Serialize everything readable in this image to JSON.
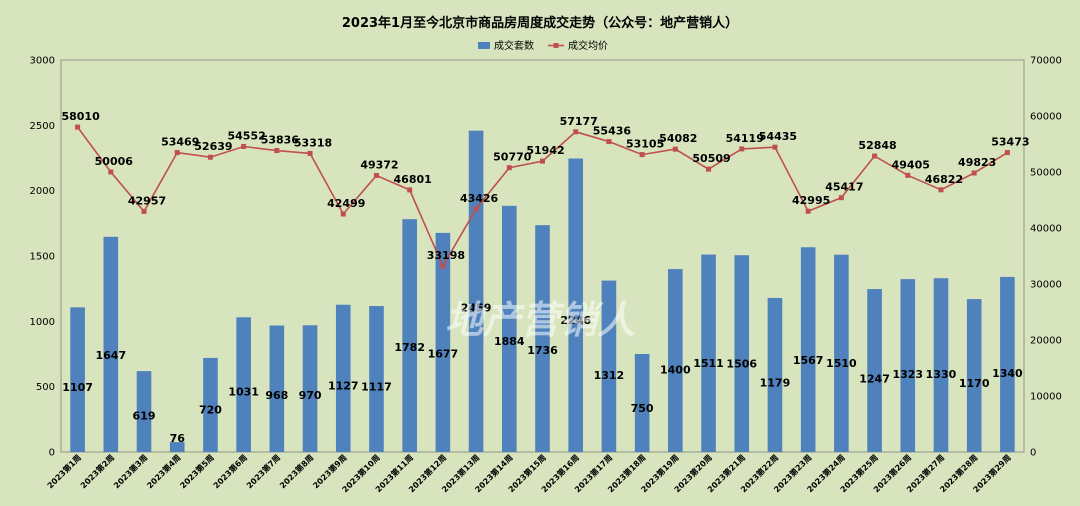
{
  "chart_data": {
    "type": "bar",
    "title": "2023年1月至今北京市商品房周度成交走势（公众号：地产营销人）",
    "watermark": "地产营销人",
    "categories": [
      "2023第1周",
      "2023第2周",
      "2023第3周",
      "2023第4周",
      "2023第5周",
      "2023第6周",
      "2023第7周",
      "2023第8周",
      "2023第9周",
      "2023第10周",
      "2023第11周",
      "2023第12周",
      "2023第13周",
      "2023第14周",
      "2023第15周",
      "2023第16周",
      "2023第17周",
      "2023第18周",
      "2023第19周",
      "2023第20周",
      "2023第21周",
      "2023第22周",
      "2023第23周",
      "2023第24周",
      "2023第25周",
      "2023第26周",
      "2023第27周",
      "2023第28周",
      "2023第29周"
    ],
    "series": [
      {
        "name": "成交套数",
        "type": "bar",
        "axis": "left",
        "color": "#4f81bd",
        "values": [
          1107,
          1647,
          619,
          76,
          720,
          1031,
          968,
          970,
          1127,
          1117,
          1782,
          1677,
          2459,
          1884,
          1736,
          2246,
          1312,
          750,
          1400,
          1511,
          1506,
          1179,
          1567,
          1510,
          1247,
          1323,
          1330,
          1170,
          1340
        ]
      },
      {
        "name": "成交均价",
        "type": "line",
        "axis": "right",
        "color": "#c0504d",
        "values": [
          58010,
          50006,
          42957,
          53469,
          52639,
          54552,
          53836,
          53318,
          42499,
          49372,
          46801,
          33198,
          43426,
          50770,
          51942,
          57177,
          55436,
          53105,
          54082,
          50509,
          54119,
          54435,
          42995,
          45417,
          52848,
          49405,
          46822,
          49823,
          53473
        ]
      }
    ],
    "left_axis": {
      "ylim": [
        0,
        3000
      ],
      "ticks": [
        "0",
        "500",
        "1000",
        "1500",
        "2000",
        "2500",
        "3000"
      ]
    },
    "right_axis": {
      "ylim": [
        0,
        70000
      ],
      "ticks": [
        "0",
        "10000",
        "20000",
        "30000",
        "40000",
        "50000",
        "60000",
        "70000"
      ]
    },
    "legend_position": "top-center",
    "grid": false
  }
}
